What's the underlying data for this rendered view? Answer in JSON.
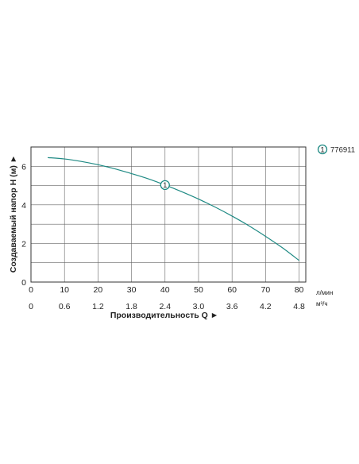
{
  "chart_data": {
    "type": "line",
    "xlabel": "Производительность Q ►",
    "ylabel": "Создаваемый напор H (м) ►",
    "x_unit_primary": "л/мин",
    "x_unit_secondary": "м³/ч",
    "xlim": [
      0,
      82
    ],
    "ylim": [
      0,
      7
    ],
    "x_ticks_primary": [
      "0",
      "10",
      "20",
      "30",
      "40",
      "50",
      "60",
      "70",
      "80"
    ],
    "x_ticks_primary_values": [
      0,
      10,
      20,
      30,
      40,
      50,
      60,
      70,
      80
    ],
    "x_ticks_secondary": [
      "0",
      "0.6",
      "1.2",
      "1.8",
      "2.4",
      "3.0",
      "3.6",
      "4.2",
      "4.8"
    ],
    "y_ticks": [
      "0",
      "2",
      "4",
      "6"
    ],
    "y_tick_values": [
      0,
      2,
      4,
      6
    ],
    "grid": true,
    "legend_position": "top-right",
    "series": [
      {
        "name": "776911",
        "marker_label": "1",
        "color": "#1f8a84",
        "x": [
          5,
          10,
          15,
          20,
          25,
          30,
          35,
          40,
          45,
          50,
          55,
          60,
          65,
          70,
          75,
          80
        ],
        "y": [
          6.45,
          6.38,
          6.25,
          6.08,
          5.87,
          5.62,
          5.35,
          5.03,
          4.68,
          4.3,
          3.88,
          3.42,
          2.92,
          2.37,
          1.78,
          1.12
        ],
        "marker_x": 40,
        "marker_y": 5.03
      }
    ]
  }
}
